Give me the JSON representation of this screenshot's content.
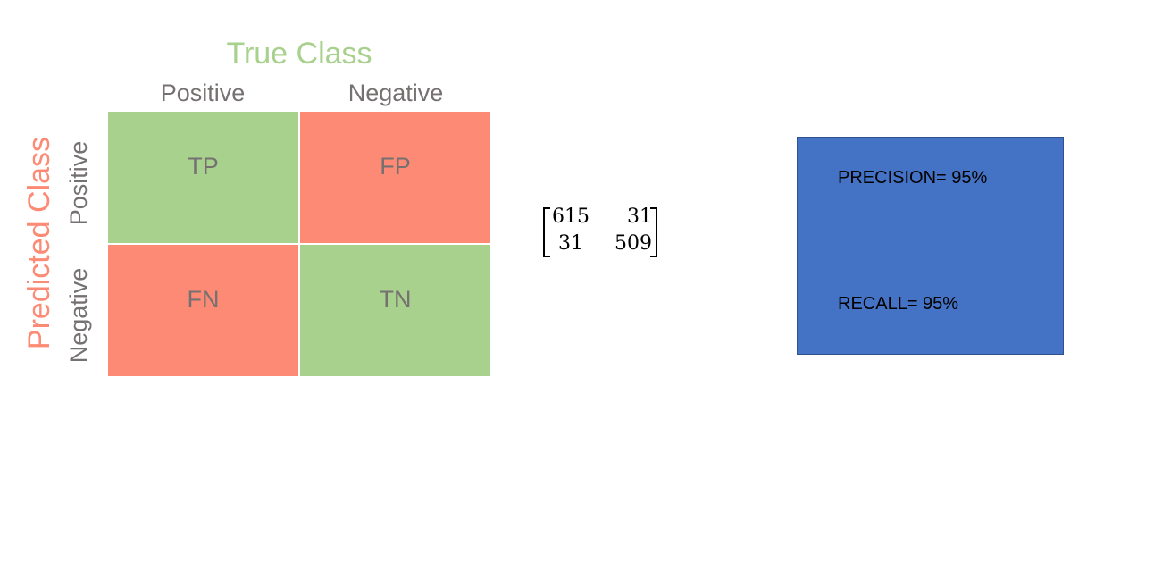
{
  "colors": {
    "positive_green": "#a9d18e",
    "negative_red": "#fc8a75",
    "label_gray": "#767171",
    "box_blue": "#4472c4"
  },
  "diagram": {
    "true_class_title": "True Class",
    "predicted_class_title": "Predicted Class",
    "columns": [
      "Positive",
      "Negative"
    ],
    "rows": [
      "Positive",
      "Negative"
    ],
    "cells": {
      "tp": "TP",
      "fp": "FP",
      "fn": "FN",
      "tn": "TN"
    }
  },
  "matrix": {
    "values": [
      [
        "615",
        "31"
      ],
      [
        "31",
        "509"
      ]
    ]
  },
  "metrics": {
    "precision": "PRECISION= 95%",
    "recall": "RECALL= 95%"
  }
}
